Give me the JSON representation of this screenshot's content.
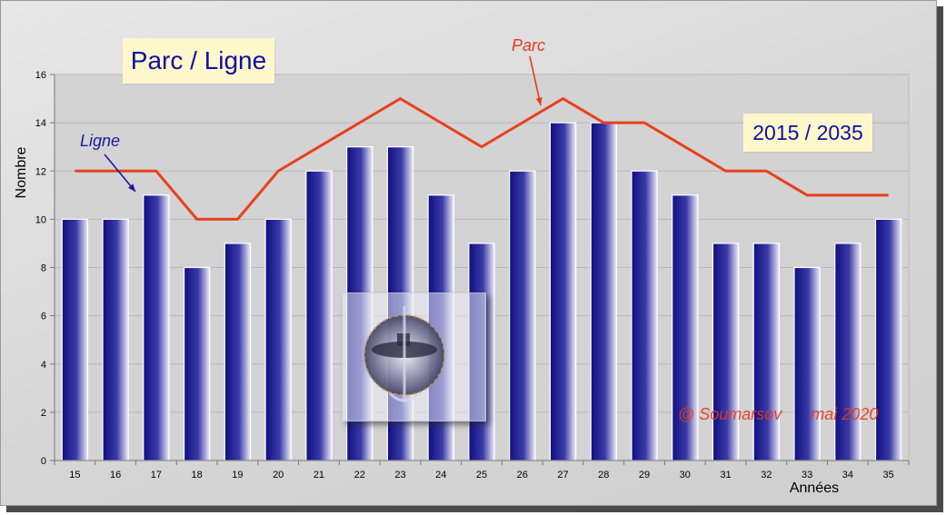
{
  "chart_data": {
    "type": "bar",
    "title": "Parc / Ligne",
    "period": "2015 / 2035",
    "xlabel": "Années",
    "ylabel": "Nombre",
    "categories": [
      "15",
      "16",
      "17",
      "18",
      "19",
      "20",
      "21",
      "22",
      "23",
      "24",
      "25",
      "26",
      "27",
      "28",
      "29",
      "30",
      "31",
      "32",
      "33",
      "34",
      "35"
    ],
    "yticks": [
      0,
      2,
      4,
      6,
      8,
      10,
      12,
      14,
      16
    ],
    "ylim": [
      0,
      16
    ],
    "grid": true,
    "series": [
      {
        "name": "Ligne",
        "type": "bar",
        "color": "#1a1a8a",
        "values": [
          10,
          10,
          11,
          8,
          9,
          10,
          12,
          13,
          13,
          11,
          9,
          12,
          14,
          14,
          12,
          11,
          9,
          9,
          8,
          9,
          10
        ]
      },
      {
        "name": "Parc",
        "type": "line",
        "color": "#e8401c",
        "values": [
          12,
          12,
          12,
          10,
          10,
          12,
          13,
          14,
          15,
          14,
          13,
          14,
          15,
          14,
          14,
          13,
          12,
          12,
          11,
          11,
          11
        ]
      }
    ],
    "annotations": {
      "credit": "@ Soumarsov",
      "credit_date": "mai 2020"
    }
  }
}
